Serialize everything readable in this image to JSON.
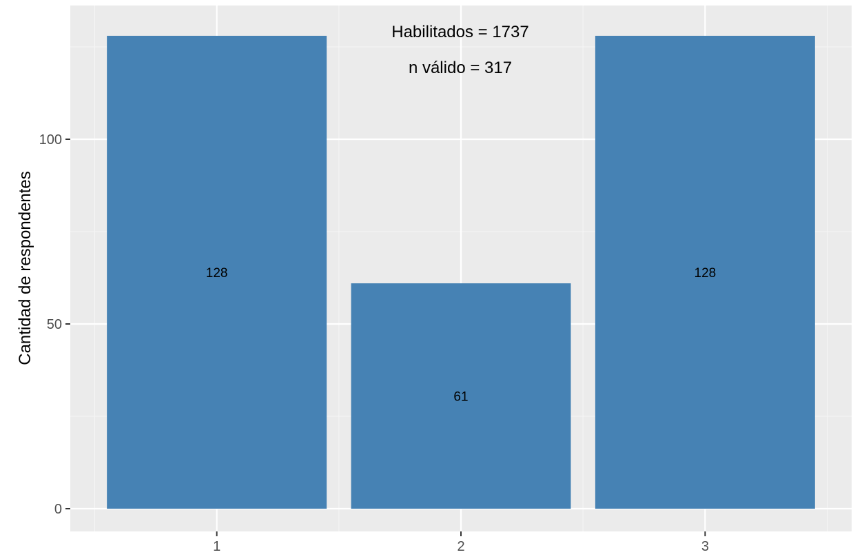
{
  "chart_data": {
    "type": "bar",
    "categories": [
      "1",
      "2",
      "3"
    ],
    "values": [
      128,
      61,
      128
    ],
    "data_labels": [
      "128",
      "61",
      "128"
    ],
    "title": "",
    "xlabel": "",
    "ylabel": "Cantidad de respondentes",
    "ylim": [
      0,
      134
    ],
    "yticks": [
      0,
      50,
      100
    ],
    "ytick_labels": [
      "0",
      "50",
      "100"
    ],
    "grid": true,
    "legend": "none",
    "annotations": [
      "Habilitados =  1737",
      "n válido = 317"
    ],
    "colors": {
      "bar": "#4682b4",
      "panel_background": "#ebebeb",
      "grid_major": "#ffffff",
      "grid_minor": "#f5f5f5",
      "tick_text": "#4d4d4d"
    }
  }
}
